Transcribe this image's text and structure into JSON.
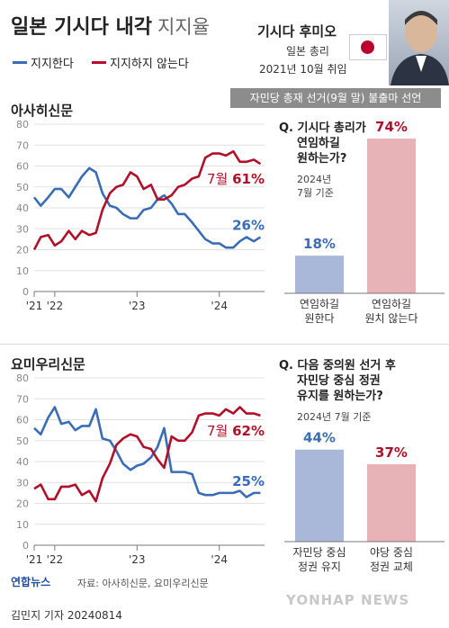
{
  "header": {
    "title": "일본 기시다 내각",
    "subtitle": "지지율",
    "legend_support": "지지한다",
    "legend_oppose": "지지하지 않는다",
    "pm_name": "기시다 후미오",
    "pm_role": "일본 총리",
    "pm_since": "2021년 10월 취임",
    "banner": "자민당 총재 선거(9월 말) 불출마 선언"
  },
  "colors": {
    "support": "#3a6db5",
    "oppose": "#b0102a",
    "bar_blue": "#a9b8d9",
    "bar_pink": "#e8b3b7"
  },
  "chart_data": [
    {
      "type": "line",
      "title": "아사히신문",
      "ylim": [
        0,
        80
      ],
      "yticks": [
        0,
        10,
        20,
        30,
        40,
        50,
        60,
        70,
        80
      ],
      "xtick_labels": [
        "'21",
        "'22",
        "'23",
        "'24"
      ],
      "xtick_positions": [
        2021.75,
        2022.0,
        2023.0,
        2024.0
      ],
      "x": [
        2021.75,
        2021.83,
        2021.92,
        2022.0,
        2022.08,
        2022.17,
        2022.25,
        2022.33,
        2022.42,
        2022.5,
        2022.58,
        2022.67,
        2022.75,
        2022.83,
        2022.92,
        2023.0,
        2023.08,
        2023.17,
        2023.25,
        2023.33,
        2023.42,
        2023.5,
        2023.58,
        2023.67,
        2023.75,
        2023.83,
        2023.92,
        2024.0,
        2024.08,
        2024.17,
        2024.25,
        2024.33,
        2024.42,
        2024.5
      ],
      "series": [
        {
          "name": "지지한다",
          "values": [
            45,
            41,
            45,
            49,
            49,
            45,
            50,
            55,
            59,
            57,
            47,
            41,
            40,
            37,
            35,
            35,
            39,
            40,
            44,
            46,
            42,
            37,
            37,
            33,
            29,
            25,
            23,
            23,
            21,
            21,
            24,
            26,
            24,
            26
          ]
        },
        {
          "name": "지지하지 않는다",
          "values": [
            20,
            26,
            27,
            22,
            24,
            29,
            25,
            29,
            27,
            28,
            39,
            47,
            50,
            51,
            57,
            55,
            49,
            51,
            44,
            44,
            46,
            50,
            51,
            54,
            55,
            64,
            66,
            66,
            65,
            67,
            62,
            62,
            63,
            61
          ]
        }
      ],
      "end_labels": {
        "support": "26%",
        "oppose_month": "7월",
        "oppose": "61%"
      }
    },
    {
      "type": "line",
      "title": "요미우리신문",
      "ylim": [
        0,
        80
      ],
      "yticks": [
        0,
        10,
        20,
        30,
        40,
        50,
        60,
        70,
        80
      ],
      "xtick_labels": [
        "'21",
        "'22",
        "'23",
        "'24"
      ],
      "xtick_positions": [
        2021.75,
        2022.0,
        2023.0,
        2024.0
      ],
      "x": [
        2021.75,
        2021.83,
        2021.92,
        2022.0,
        2022.08,
        2022.17,
        2022.25,
        2022.33,
        2022.42,
        2022.5,
        2022.58,
        2022.67,
        2022.75,
        2022.83,
        2022.92,
        2023.0,
        2023.08,
        2023.17,
        2023.25,
        2023.33,
        2023.42,
        2023.5,
        2023.58,
        2023.67,
        2023.75,
        2023.83,
        2023.92,
        2024.0,
        2024.08,
        2024.17,
        2024.25,
        2024.33,
        2024.42,
        2024.5
      ],
      "series": [
        {
          "name": "지지한다",
          "values": [
            56,
            53,
            61,
            66,
            58,
            59,
            55,
            57,
            57,
            65,
            51,
            50,
            45,
            39,
            36,
            38,
            39,
            42,
            47,
            56,
            35,
            35,
            35,
            34,
            25,
            24,
            24,
            25,
            25,
            25,
            26,
            23,
            25,
            25
          ]
        },
        {
          "name": "지지하지 않는다",
          "values": [
            27,
            29,
            22,
            22,
            28,
            28,
            29,
            24,
            26,
            21,
            32,
            39,
            48,
            51,
            53,
            52,
            47,
            46,
            41,
            37,
            52,
            50,
            50,
            54,
            62,
            63,
            63,
            62,
            65,
            63,
            66,
            63,
            63,
            62
          ]
        }
      ],
      "end_labels": {
        "support": "25%",
        "oppose_month": "7월",
        "oppose": "62%"
      }
    }
  ],
  "survey1": {
    "q_prefix": "Q.",
    "q_lines": [
      "기시다 총리가",
      "연임하길",
      "원하는가?"
    ],
    "note_lines": [
      "2024년",
      "7월 기준"
    ],
    "bars": [
      {
        "value": 18,
        "label": "18%",
        "cat_lines": [
          "연임하길",
          "원한다"
        ]
      },
      {
        "value": 74,
        "label": "74%",
        "cat_lines": [
          "연임하길",
          "원치 않는다"
        ]
      }
    ]
  },
  "survey2": {
    "q_prefix": "Q.",
    "q_lines": [
      "다음 중의원 선거 후",
      "자민당 중심 정권",
      "유지를 원하는가?"
    ],
    "note_lines": [
      "2024년 7월 기준"
    ],
    "bars": [
      {
        "value": 44,
        "label": "44%",
        "cat_lines": [
          "자민당 중심",
          "정권 유지"
        ]
      },
      {
        "value": 37,
        "label": "37%",
        "cat_lines": [
          "야당 중심",
          "정권 교체"
        ]
      }
    ]
  },
  "footer": {
    "logo": "연합뉴스",
    "source": "자료: 아사히신문, 요미우리신문",
    "byline": "김민지 기자  20240814",
    "watermark": "YONHAP NEWS"
  }
}
